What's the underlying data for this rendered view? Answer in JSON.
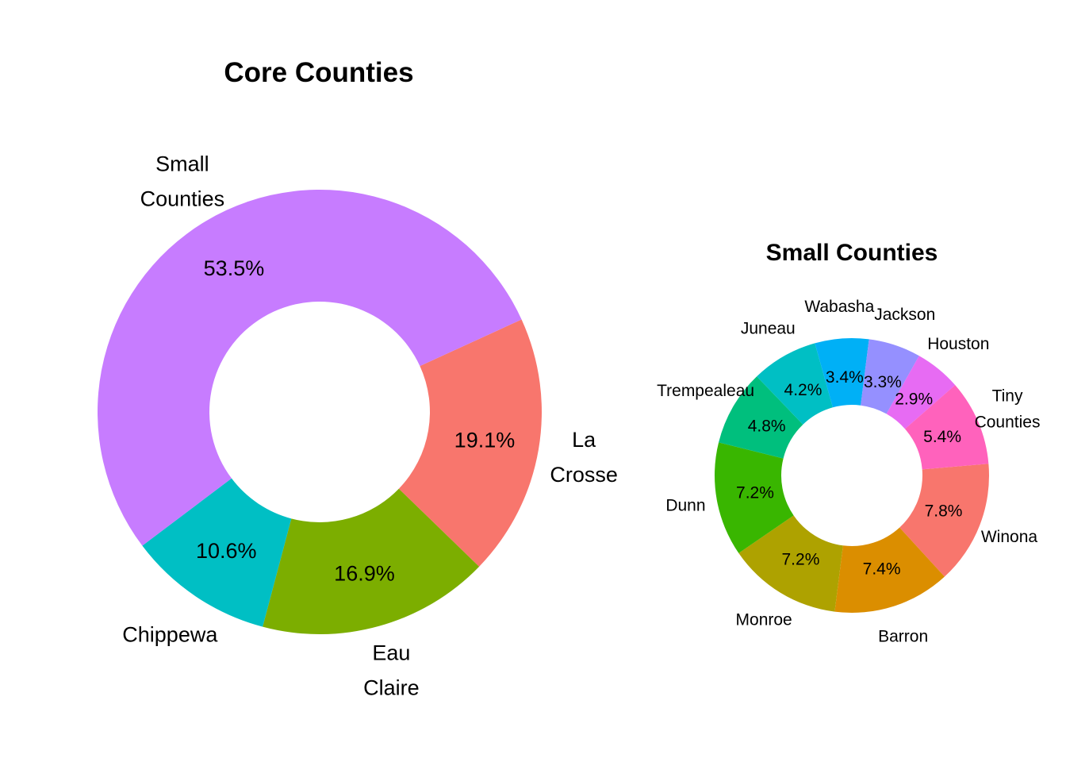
{
  "chart_data": [
    {
      "type": "pie",
      "variant": "donut",
      "title": "Core Counties",
      "slices": [
        {
          "label": [
            "La",
            "Crosse"
          ],
          "percent": "19.1%",
          "value": 19.1,
          "color": "#F8766D"
        },
        {
          "label": [
            "Eau",
            "Claire"
          ],
          "percent": "16.9%",
          "value": 16.9,
          "color": "#7CAE00"
        },
        {
          "label": [
            "Chippewa"
          ],
          "percent": "10.6%",
          "value": 10.6,
          "color": "#00BFC4"
        },
        {
          "label": [
            "Small",
            "Counties"
          ],
          "percent": "53.5%",
          "value": 53.5,
          "color": "#C77CFF"
        }
      ]
    },
    {
      "type": "pie",
      "variant": "donut",
      "title": "Small Counties",
      "slices": [
        {
          "label": [
            "Winona"
          ],
          "percent": "7.8%",
          "value": 7.8,
          "color": "#F8766D"
        },
        {
          "label": [
            "Barron"
          ],
          "percent": "7.4%",
          "value": 7.4,
          "color": "#DB8E00"
        },
        {
          "label": [
            "Monroe"
          ],
          "percent": "7.2%",
          "value": 7.2,
          "color": "#AEA200"
        },
        {
          "label": [
            "Dunn"
          ],
          "percent": "7.2%",
          "value": 7.2,
          "color": "#39B600"
        },
        {
          "label": [
            "Trempealeau"
          ],
          "percent": "4.8%",
          "value": 4.8,
          "color": "#00BF7D"
        },
        {
          "label": [
            "Juneau"
          ],
          "percent": "4.2%",
          "value": 4.2,
          "color": "#00BFC4"
        },
        {
          "label": [
            "Wabasha"
          ],
          "percent": "3.4%",
          "value": 3.4,
          "color": "#00B0F6"
        },
        {
          "label": [
            "Jackson"
          ],
          "percent": "3.3%",
          "value": 3.3,
          "color": "#9590FF"
        },
        {
          "label": [
            "Houston"
          ],
          "percent": "2.9%",
          "value": 2.9,
          "color": "#E76BF3"
        },
        {
          "label": [
            "Tiny",
            "Counties"
          ],
          "percent": "5.4%",
          "value": 5.4,
          "color": "#FF62BC"
        }
      ]
    }
  ]
}
